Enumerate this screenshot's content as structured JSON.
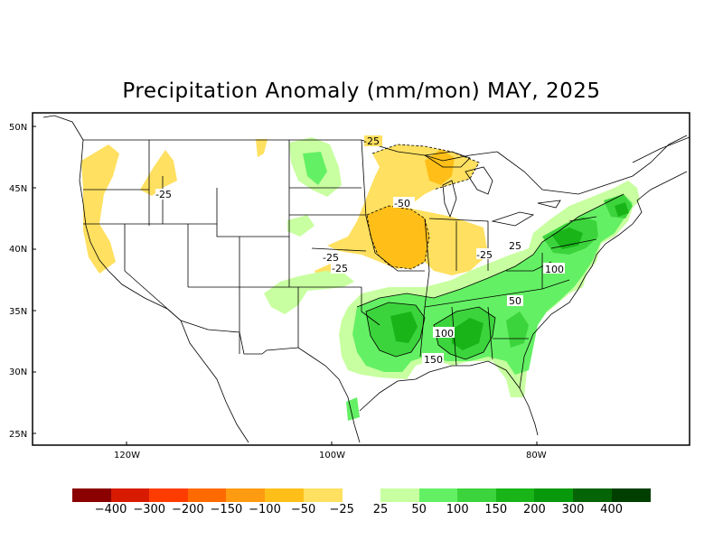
{
  "title": "Precipitation Anomaly (mm/mon) MAY, 2025",
  "lat_labels": [
    "50N",
    "45N",
    "40N",
    "35N",
    "30N",
    "25N"
  ],
  "lon_labels": [
    "120W",
    "100W",
    "80W"
  ],
  "contour_labels": [
    "-25",
    "-50",
    "-25",
    "-25",
    "-25",
    "25",
    "-25",
    "100",
    "50",
    "100",
    "150"
  ],
  "legend": {
    "colors": [
      "#8b0000",
      "#d81b00",
      "#ff3c00",
      "#ff6a00",
      "#ff9b10",
      "#ffbf18",
      "#ffe060",
      "#c8ffa0",
      "#64f064",
      "#3cd43c",
      "#18b418",
      "#08980c",
      "#056405",
      "#003f00"
    ],
    "ticks": [
      "−400",
      "−300",
      "−200",
      "−150",
      "−100",
      "−50",
      "−25",
      "25",
      "50",
      "100",
      "150",
      "200",
      "300",
      "400"
    ]
  }
}
